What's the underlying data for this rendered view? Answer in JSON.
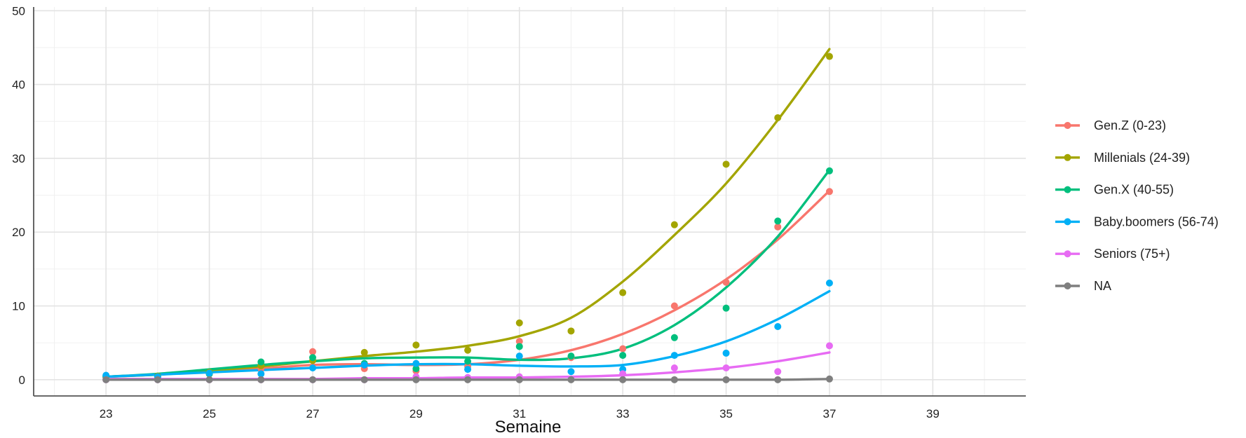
{
  "chart_data": {
    "type": "line",
    "title": "",
    "xlabel": "Semaine",
    "ylabel": "",
    "xlim": [
      21.6,
      40.8
    ],
    "ylim": [
      -2.2,
      50.5
    ],
    "xticks": [
      23,
      25,
      27,
      29,
      31,
      33,
      35,
      37,
      39
    ],
    "yticks": [
      0,
      10,
      20,
      30,
      40,
      50
    ],
    "grid": true,
    "legend_position": "right",
    "series": [
      {
        "name": "Gen.Z (0-23)",
        "color": "#F8766D",
        "points": {
          "x": [
            23,
            24,
            25,
            26,
            27,
            28,
            29,
            30,
            31,
            32,
            33,
            34,
            35,
            36,
            37
          ],
          "y": [
            0.3,
            0.4,
            0.8,
            1.5,
            3.8,
            1.5,
            1.2,
            1.8,
            5.2,
            3.0,
            4.2,
            10.0,
            13.2,
            20.7,
            25.5
          ]
        },
        "smooth": {
          "x": [
            23,
            24,
            25,
            26,
            27,
            28,
            29,
            30,
            31,
            32,
            33,
            34,
            35,
            36,
            37
          ],
          "y": [
            0.4,
            0.7,
            1.1,
            1.5,
            2.0,
            2.1,
            2.0,
            2.1,
            2.7,
            4.0,
            6.2,
            9.4,
            13.6,
            19.0,
            25.6
          ]
        }
      },
      {
        "name": "Millenials (24-39)",
        "color": "#A3A500",
        "points": {
          "x": [
            23,
            24,
            25,
            26,
            27,
            28,
            29,
            30,
            31,
            32,
            33,
            34,
            35,
            36,
            37
          ],
          "y": [
            0.4,
            0.5,
            1.0,
            1.9,
            2.6,
            3.7,
            4.7,
            4.0,
            7.7,
            6.6,
            11.8,
            21.0,
            29.2,
            35.5,
            43.8
          ]
        },
        "smooth": {
          "x": [
            23,
            24,
            25,
            26,
            27,
            28,
            29,
            30,
            31,
            32,
            33,
            34,
            35,
            36,
            37
          ],
          "y": [
            0.4,
            0.7,
            1.2,
            1.8,
            2.5,
            3.2,
            3.8,
            4.6,
            5.9,
            8.4,
            13.3,
            19.6,
            26.6,
            35.2,
            44.8
          ]
        }
      },
      {
        "name": "Gen.X (40-55)",
        "color": "#00BF7D",
        "points": {
          "x": [
            23,
            24,
            25,
            26,
            27,
            28,
            29,
            30,
            31,
            32,
            33,
            34,
            35,
            36,
            37
          ],
          "y": [
            0.5,
            0.4,
            0.8,
            2.4,
            3.0,
            2.2,
            1.5,
            2.5,
            4.5,
            3.2,
            3.3,
            5.7,
            9.7,
            21.5,
            28.3
          ]
        },
        "smooth": {
          "x": [
            23,
            24,
            25,
            26,
            27,
            28,
            29,
            30,
            31,
            32,
            33,
            34,
            35,
            36,
            37
          ],
          "y": [
            0.4,
            0.8,
            1.4,
            2.0,
            2.5,
            2.9,
            3.0,
            3.0,
            2.7,
            2.9,
            4.2,
            7.4,
            12.5,
            19.4,
            28.4
          ]
        }
      },
      {
        "name": "Baby.boomers (56-74)",
        "color": "#00B0F6",
        "points": {
          "x": [
            23,
            24,
            25,
            26,
            27,
            28,
            29,
            30,
            31,
            32,
            33,
            34,
            35,
            36,
            37
          ],
          "y": [
            0.6,
            0.4,
            0.9,
            0.8,
            1.6,
            2.0,
            2.2,
            1.4,
            3.2,
            1.1,
            1.4,
            3.3,
            3.6,
            7.2,
            13.1
          ]
        },
        "smooth": {
          "x": [
            23,
            24,
            25,
            26,
            27,
            28,
            29,
            30,
            31,
            32,
            33,
            34,
            35,
            36,
            37
          ],
          "y": [
            0.4,
            0.7,
            1.0,
            1.3,
            1.6,
            1.9,
            2.1,
            2.1,
            1.9,
            1.8,
            2.0,
            3.2,
            5.2,
            8.2,
            12.0
          ]
        }
      },
      {
        "name": "Seniors (75+)",
        "color": "#E76BF3",
        "points": {
          "x": [
            23,
            24,
            25,
            26,
            27,
            28,
            29,
            30,
            31,
            32,
            33,
            34,
            35,
            36,
            37
          ],
          "y": [
            0.0,
            0.0,
            0.0,
            0.0,
            0.0,
            0.0,
            0.4,
            0.3,
            0.4,
            0.1,
            0.8,
            1.6,
            1.6,
            1.1,
            4.6
          ]
        },
        "smooth": {
          "x": [
            23,
            24,
            25,
            26,
            27,
            28,
            29,
            30,
            31,
            32,
            33,
            34,
            35,
            36,
            37
          ],
          "y": [
            0.1,
            0.1,
            0.1,
            0.1,
            0.1,
            0.2,
            0.2,
            0.3,
            0.3,
            0.4,
            0.6,
            1.0,
            1.6,
            2.5,
            3.7
          ]
        }
      },
      {
        "name": "NA",
        "color": "#7F7F7F",
        "points": {
          "x": [
            23,
            24,
            25,
            26,
            27,
            28,
            29,
            30,
            31,
            32,
            33,
            34,
            35,
            36,
            37
          ],
          "y": [
            0,
            0,
            0,
            0,
            0,
            0,
            0,
            0,
            0,
            0,
            0,
            0,
            0,
            0,
            0.1
          ]
        },
        "smooth": {
          "x": [
            23,
            24,
            25,
            26,
            27,
            28,
            29,
            30,
            31,
            32,
            33,
            34,
            35,
            36,
            37
          ],
          "y": [
            0,
            0,
            0,
            0,
            0,
            0,
            0,
            0,
            0,
            0,
            0,
            0,
            0,
            0,
            0.1
          ]
        }
      }
    ]
  }
}
